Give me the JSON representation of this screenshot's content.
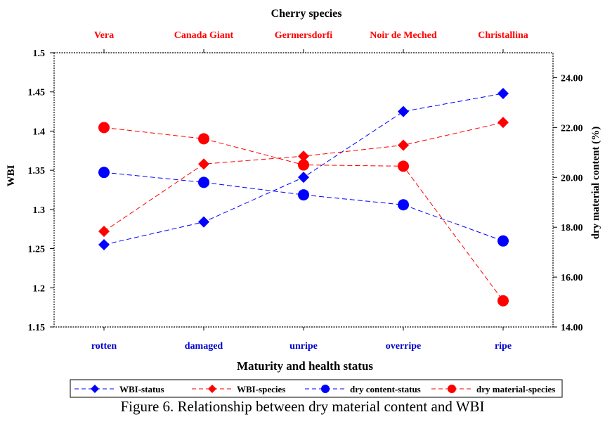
{
  "caption": "Figure 6. Relationship between dry material content and WBI",
  "chart_data": {
    "type": "line",
    "title": "Cherry species",
    "top_categories": [
      "Vera",
      "Canada Giant",
      "Germersdorfi",
      "Noir de Meched",
      "Christallina"
    ],
    "categories": [
      "rotten",
      "damaged",
      "unripe",
      "overripe",
      "ripe"
    ],
    "xlabel": "Maturity and health status",
    "ylabel": "WBI",
    "y2label": "dry material content (%)",
    "ylim": [
      1.15,
      1.5
    ],
    "y2lim": [
      14,
      25
    ],
    "y_ticks": [
      "1.15",
      "1.2",
      "1.25",
      "1.3",
      "1.35",
      "1.4",
      "1.45",
      "1.5"
    ],
    "y2_ticks": [
      "14.00",
      "16.00",
      "18.00",
      "20.00",
      "22.00",
      "24.00"
    ],
    "legend_position": "bottom",
    "colors": {
      "blue": "#0000ff",
      "red": "#ff0000",
      "top_category": "#ff0000",
      "bottom_category": "#0000cc"
    },
    "series": [
      {
        "name": "WBI-status",
        "axis": "left",
        "marker": "diamond",
        "color": "#0000ff",
        "values": [
          1.255,
          1.284,
          1.341,
          1.425,
          1.448
        ]
      },
      {
        "name": "WBI-species",
        "axis": "left",
        "marker": "diamond",
        "color": "#ff0000",
        "values": [
          1.272,
          1.358,
          1.368,
          1.382,
          1.411
        ]
      },
      {
        "name": "dry content-status",
        "axis": "right",
        "marker": "circle",
        "color": "#0000ff",
        "values": [
          20.2,
          19.8,
          19.3,
          18.9,
          17.45
        ]
      },
      {
        "name": "dry material-species",
        "axis": "right",
        "marker": "circle",
        "color": "#ff0000",
        "values": [
          22.0,
          21.55,
          20.5,
          20.45,
          15.05
        ]
      }
    ]
  }
}
